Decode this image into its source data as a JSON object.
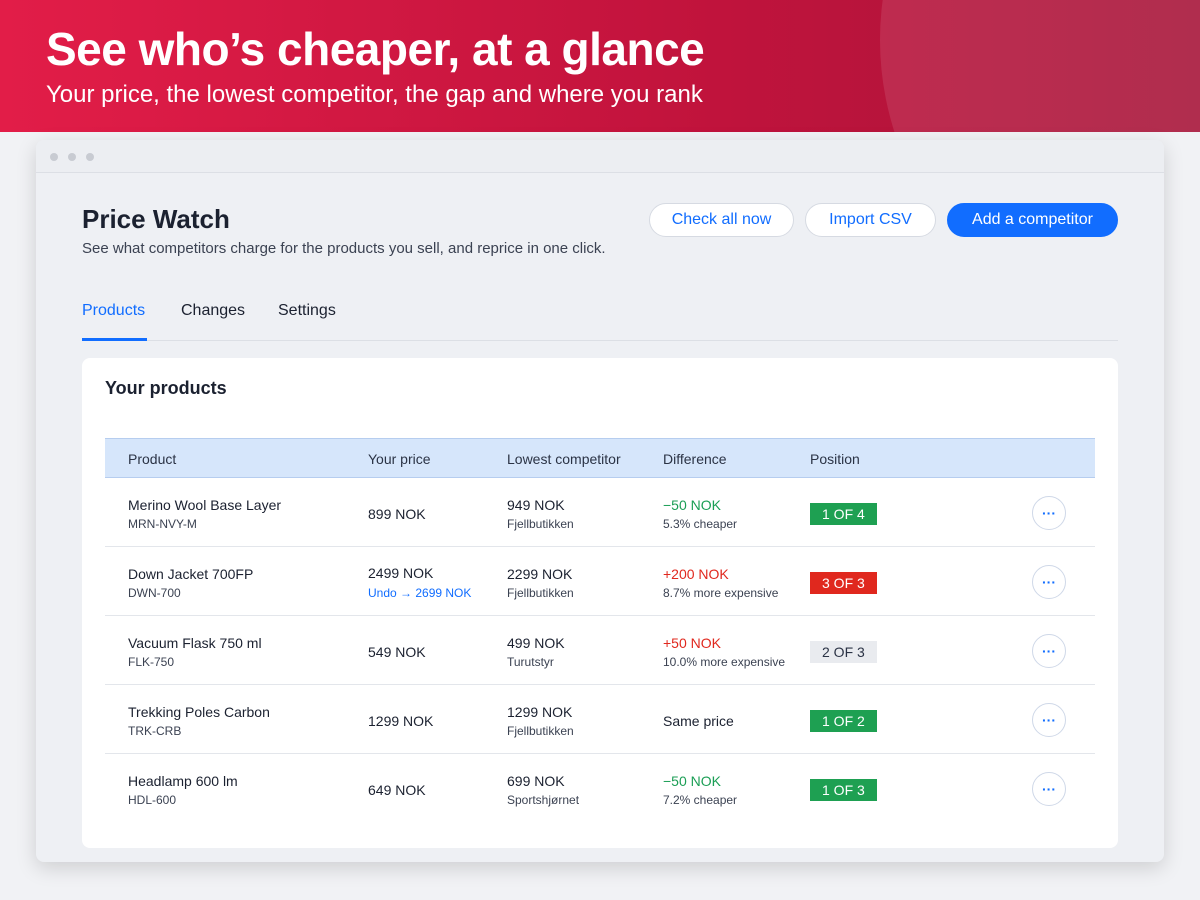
{
  "banner": {
    "title": "See who’s cheaper, at a glance",
    "subtitle": "Your price, the lowest competitor, the gap and where you rank"
  },
  "header": {
    "title": "Price Watch",
    "description": "See what competitors charge for the products you sell, and reprice in one click.",
    "buttons": [
      "Check all now",
      "Import CSV",
      "Add a competitor"
    ]
  },
  "tabs": [
    "Products",
    "Changes",
    "Settings"
  ],
  "card": {
    "title": "Your products",
    "columns": [
      "Product",
      "Your price",
      "Lowest competitor",
      "Difference",
      "Position"
    ],
    "rows": [
      {
        "product": "Merino Wool Base Layer",
        "sku": "MRN-NVY-M",
        "your_price": "899 NOK",
        "lowest_price": "949 NOK",
        "competitor": "Fjellbutikken",
        "difference": "−50 NOK",
        "difference_note": "5.3% cheaper",
        "position": "1 OF 4"
      },
      {
        "product": "Down Jacket 700FP",
        "sku": "DWN-700",
        "your_price": "2499 NOK",
        "undo": "Undo → 2699 NOK",
        "lowest_price": "2299 NOK",
        "competitor": "Fjellbutikken",
        "difference": "+200 NOK",
        "difference_note": "8.7% more expensive",
        "position": "3 OF 3"
      },
      {
        "product": "Vacuum Flask 750 ml",
        "sku": "FLK-750",
        "your_price": "549 NOK",
        "lowest_price": "499 NOK",
        "competitor": "Turutstyr",
        "difference": "+50 NOK",
        "difference_note": "10.0% more expensive",
        "position": "2 OF 3"
      },
      {
        "product": "Trekking Poles Carbon",
        "sku": "TRK-CRB",
        "your_price": "1299 NOK",
        "lowest_price": "1299 NOK",
        "competitor": "Fjellbutikken",
        "difference": "Same price",
        "position": "1 OF 2"
      },
      {
        "product": "Headlamp 600 lm",
        "sku": "HDL-600",
        "your_price": "649 NOK",
        "lowest_price": "699 NOK",
        "competitor": "Sportshjørnet",
        "difference": "−50 NOK",
        "difference_note": "7.2% cheaper",
        "position": "1 OF 3"
      }
    ]
  }
}
